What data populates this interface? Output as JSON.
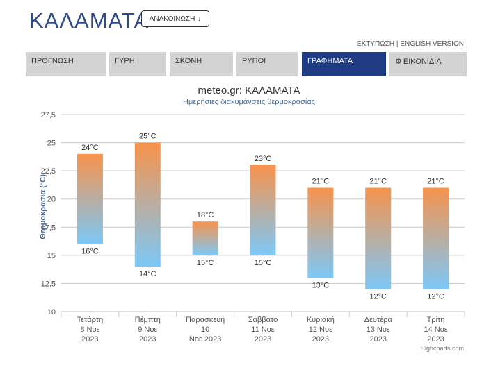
{
  "header": {
    "city": "ΚΑΛΑΜΑΤΑ",
    "announce_label": "ΑΝΑΚΟΙΝΩΣΗ",
    "announce_icon": "arrow-down-icon",
    "print_label": "ΕΚΤΥΠΩΣΗ",
    "separator": "|",
    "english_label": "ENGLISH VERSION"
  },
  "tabs": [
    {
      "label": "ΠΡΟΓΝΩΣΗ"
    },
    {
      "label": "ΓΥΡΗ"
    },
    {
      "label": "ΣΚΟΝΗ"
    },
    {
      "label": "ΡΥΠΟΙ"
    },
    {
      "label": "ΓΡΑΦΗΜΑΤΑ",
      "active": true
    },
    {
      "label": "ΕΙΚΟΝΙΔΙΑ",
      "icon": "gear-icon"
    }
  ],
  "chart_data": {
    "type": "bar",
    "subtype": "columnrange",
    "title": "meteo.gr: ΚΑΛΑΜΑΤΑ",
    "subtitle": "Ημερήσιες διακυμάνσεις θερμοκρασίας",
    "ylabel": "Θερμοκρασία (°C)",
    "ylim": [
      10,
      27.5
    ],
    "yticks": [
      "10",
      "12,5",
      "15",
      "17,5",
      "20",
      "22,5",
      "25",
      "27,5"
    ],
    "ytick_values": [
      10,
      12.5,
      15,
      17.5,
      20,
      22.5,
      25,
      27.5
    ],
    "grid": true,
    "legend": "none",
    "categories": [
      [
        "Τετάρτη",
        "8 Νοε",
        "2023"
      ],
      [
        "Πέμπτη",
        "9 Νοε",
        "2023"
      ],
      [
        "Παρασκευή",
        "10",
        "Νοε 2023"
      ],
      [
        "Σάββατο",
        "11 Νοε",
        "2023"
      ],
      [
        "Κυριακή",
        "12 Νοε",
        "2023"
      ],
      [
        "Δευτέρα",
        "13 Νοε",
        "2023"
      ],
      [
        "Τρίτη",
        "14 Νοε",
        "2023"
      ]
    ],
    "low": [
      16,
      14,
      15,
      15,
      13,
      12,
      12
    ],
    "high": [
      24,
      25,
      18,
      23,
      21,
      21,
      21
    ],
    "low_labels": [
      "16°C",
      "14°C",
      "15°C",
      "15°C",
      "13°C",
      "12°C",
      "12°C"
    ],
    "high_labels": [
      "24°C",
      "25°C",
      "18°C",
      "23°C",
      "21°C",
      "21°C",
      "21°C"
    ],
    "colors": {
      "warm": "#f7934c",
      "cool": "#7cc8f7",
      "grid": "#c8c8c8",
      "axis_title": "#4a6a9a"
    },
    "credit": "Highcharts.com"
  }
}
